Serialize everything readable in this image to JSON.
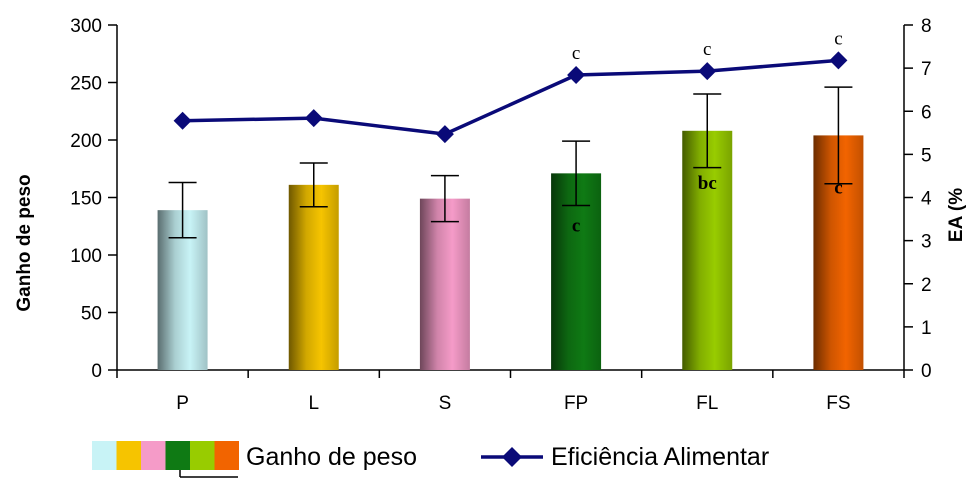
{
  "chart_data": {
    "type": "bar",
    "categories": [
      "P",
      "L",
      "S",
      "FP",
      "FL",
      "FS"
    ],
    "series": [
      {
        "name": "Ganho de peso",
        "type": "bar",
        "axis": "left",
        "values": [
          139,
          161,
          149,
          171,
          208,
          204
        ],
        "error": [
          24,
          19,
          20,
          28,
          32,
          42
        ],
        "labels": [
          "",
          "",
          "",
          "c",
          "bc",
          "c"
        ],
        "colors": [
          "#c8f3f6",
          "#f6c400",
          "#f59bc8",
          "#0f7a14",
          "#98cc00",
          "#f26400"
        ]
      },
      {
        "name": "Eficiência Alimentar",
        "type": "line",
        "axis": "right",
        "values": [
          5.78,
          5.84,
          5.47,
          6.84,
          6.93,
          7.18
        ],
        "labels": [
          "",
          "",
          "",
          "c",
          "c",
          "c"
        ],
        "color": "#0a0a78"
      }
    ],
    "ylabel": "Ganho de peso",
    "y2label": "EA (%",
    "ylim": [
      0,
      300
    ],
    "yticks": [
      0,
      50,
      100,
      150,
      200,
      250,
      300
    ],
    "y2lim": [
      0,
      8
    ],
    "y2ticks": [
      0,
      1,
      2,
      3,
      4,
      5,
      6,
      7,
      8
    ],
    "grid": false,
    "legend": "bottom"
  }
}
